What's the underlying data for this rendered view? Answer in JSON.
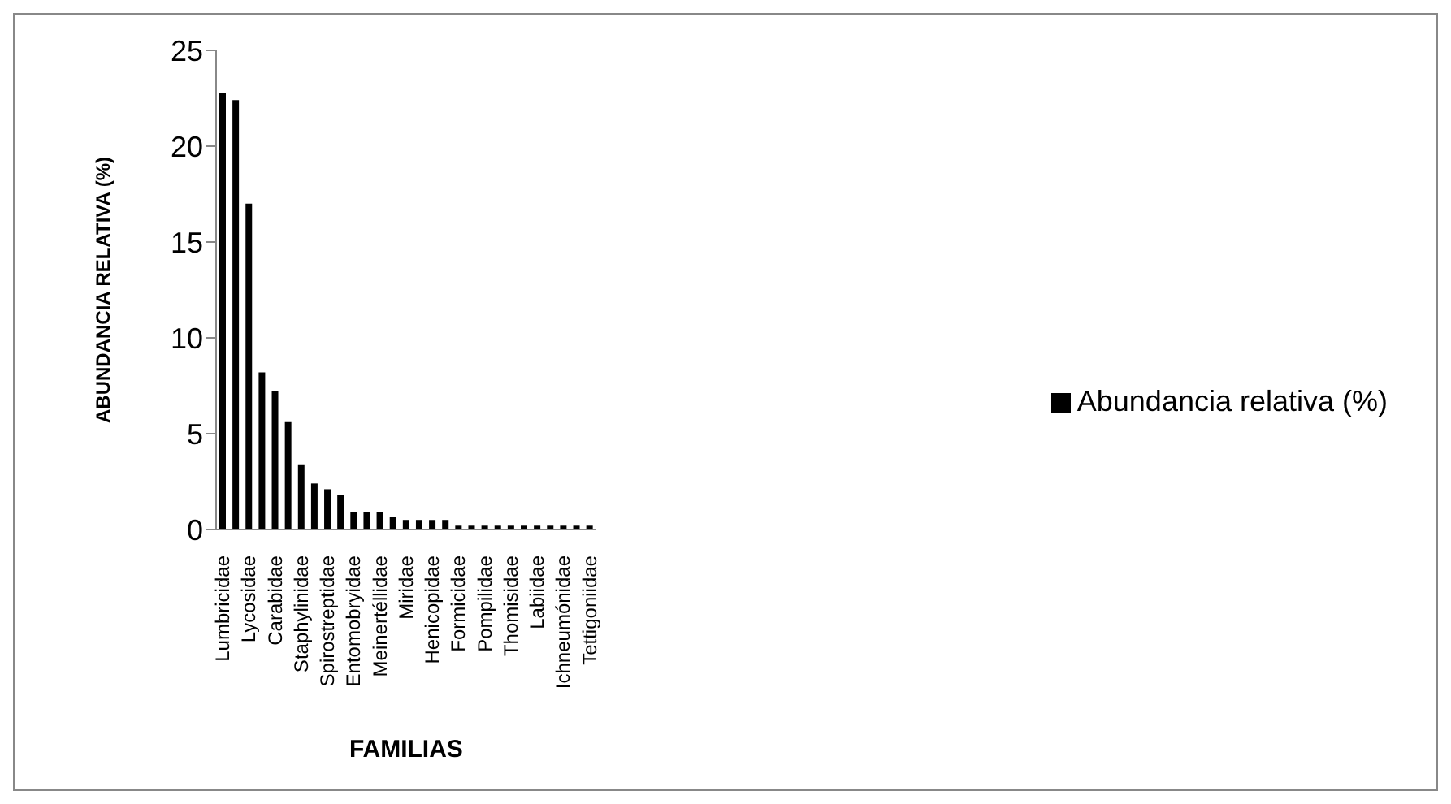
{
  "chart_data": {
    "type": "bar",
    "xlabel": "FAMILIAS",
    "ylabel": "ABUNDANCIA RELATIVA  (%)",
    "categories": [
      "Lumbricidae",
      null,
      "Lycosidae",
      null,
      "Carabidae",
      null,
      "Staphylinidae",
      null,
      "Spirostreptidae",
      null,
      "Entomobryidae",
      null,
      "Meinertéllidae",
      null,
      "Miridae",
      null,
      "Henicopidae",
      null,
      "Formicidae",
      null,
      "Pompilidae",
      null,
      "Thomisidae",
      null,
      "Labiidae",
      null,
      "Ichneumónidae",
      null,
      "Tettigoniidae"
    ],
    "series": [
      {
        "name": "Abundancia relativa (%)",
        "color": "#000000",
        "values": [
          22.8,
          22.4,
          17.0,
          8.2,
          7.2,
          5.6,
          3.4,
          2.4,
          2.1,
          1.8,
          0.9,
          0.9,
          0.9,
          0.65,
          0.5,
          0.5,
          0.5,
          0.5,
          0.2,
          0.2,
          0.2,
          0.2,
          0.2,
          0.2,
          0.2,
          0.2,
          0.2,
          0.2,
          0.2
        ]
      }
    ],
    "ylim": [
      0,
      25
    ],
    "yticks": [
      0,
      5,
      10,
      15,
      20,
      25
    ],
    "grid": false,
    "legend": "right"
  }
}
